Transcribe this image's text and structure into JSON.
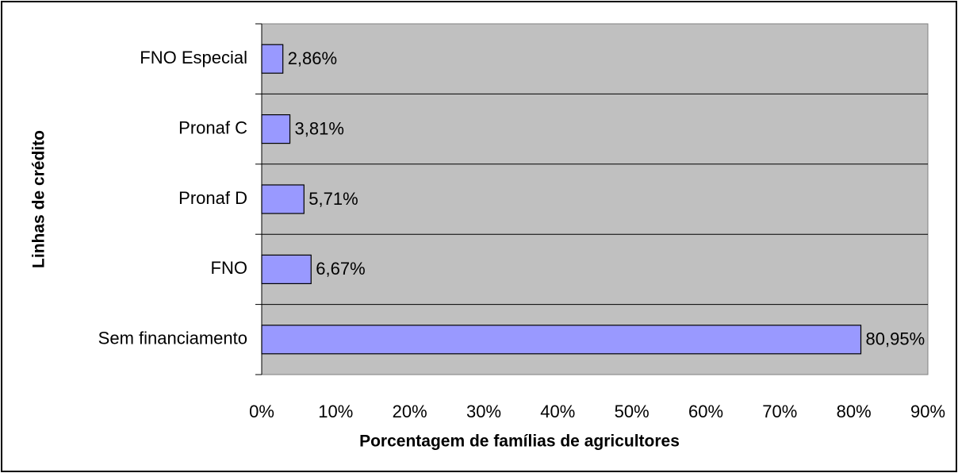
{
  "chart_data": {
    "type": "hbar",
    "categories": [
      "FNO Especial",
      "Pronaf C",
      "Pronaf D",
      "FNO",
      "Sem financiamento"
    ],
    "values": [
      2.86,
      3.81,
      5.71,
      6.67,
      80.95
    ],
    "value_labels": [
      "2,86%",
      "3,81%",
      "5,71%",
      "6,67%",
      "80,95%"
    ],
    "color": "#9999ff",
    "xlabel": "Porcentagem de famílias de agricultores",
    "ylabel": "Linhas de crédito",
    "xlim": [
      0,
      90
    ],
    "xticks": [
      {
        "value": 0,
        "label": "0%"
      },
      {
        "value": 10,
        "label": "10%"
      },
      {
        "value": 20,
        "label": "20%"
      },
      {
        "value": 30,
        "label": "30%"
      },
      {
        "value": 40,
        "label": "40%"
      },
      {
        "value": 50,
        "label": "50%"
      },
      {
        "value": 60,
        "label": "60%"
      },
      {
        "value": 70,
        "label": "70%"
      },
      {
        "value": 80,
        "label": "80%"
      },
      {
        "value": 90,
        "label": "90%"
      }
    ],
    "grid": true
  }
}
